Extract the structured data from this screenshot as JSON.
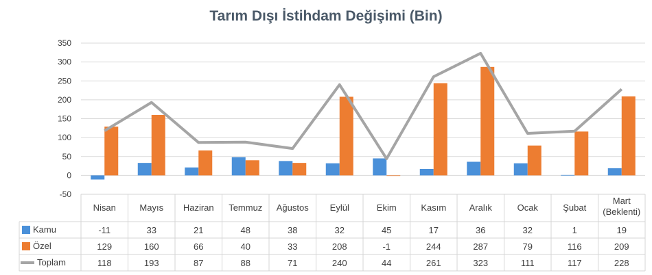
{
  "chart_data": {
    "type": "bar",
    "title": "Tarım Dışı İstihdam Değişimi (Bin)",
    "categories": [
      "Nisan",
      "Mayıs",
      "Haziran",
      "Temmuz",
      "Ağustos",
      "Eylül",
      "Ekim",
      "Kasım",
      "Aralık",
      "Ocak",
      "Şubat",
      "Mart (Beklenti)"
    ],
    "series": [
      {
        "name": "Kamu",
        "type": "bar",
        "color": "#4a90d9",
        "values": [
          -11,
          33,
          21,
          48,
          38,
          32,
          45,
          17,
          36,
          32,
          1,
          19
        ]
      },
      {
        "name": "Özel",
        "type": "bar",
        "color": "#ed7d31",
        "values": [
          129,
          160,
          66,
          40,
          33,
          208,
          -1,
          244,
          287,
          79,
          116,
          209
        ]
      },
      {
        "name": "Toplam",
        "type": "line",
        "color": "#a5a5a5",
        "values": [
          118,
          193,
          87,
          88,
          71,
          240,
          44,
          261,
          323,
          111,
          117,
          228
        ]
      }
    ],
    "yticks": [
      350,
      300,
      250,
      200,
      150,
      100,
      50,
      0,
      -50
    ],
    "ylim": [
      -50,
      350
    ],
    "grid": true,
    "legend": "data-table"
  }
}
